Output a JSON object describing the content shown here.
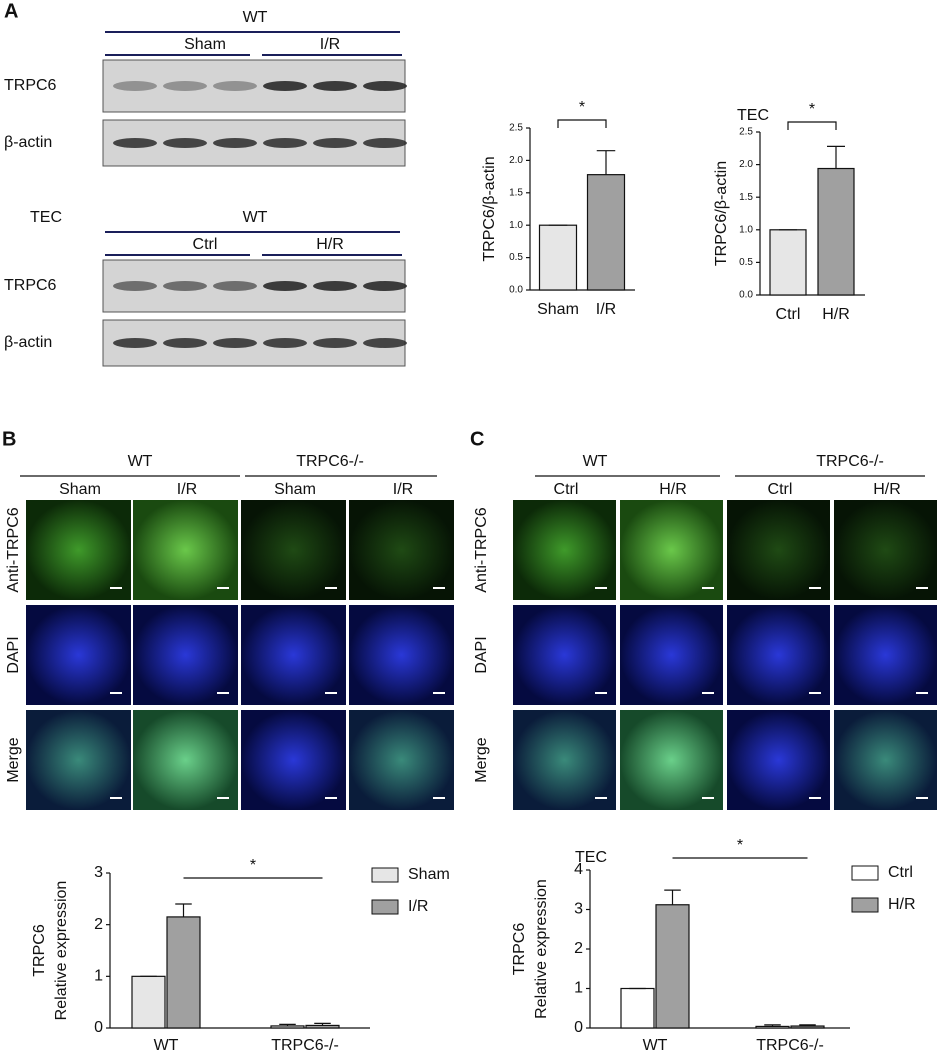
{
  "panel_a": {
    "label": "A",
    "blot1": {
      "group": "WT",
      "conditions": [
        "Sham",
        "I/R"
      ],
      "rows": [
        "TRPC6",
        "β-actin"
      ]
    },
    "blot2": {
      "cell": "TEC",
      "group": "WT",
      "conditions": [
        "Ctrl",
        "H/R"
      ],
      "rows": [
        "TRPC6",
        "β-actin"
      ]
    }
  },
  "panel_b": {
    "label": "B",
    "groups": [
      "WT",
      "TRPC6-/-"
    ],
    "conditions": [
      "Sham",
      "I/R",
      "Sham",
      "I/R"
    ],
    "rows": [
      "Anti-TRPC6",
      "DAPI",
      "Merge"
    ]
  },
  "panel_c": {
    "label": "C",
    "groups": [
      "WT",
      "TRPC6-/-"
    ],
    "conditions": [
      "Ctrl",
      "H/R",
      "Ctrl",
      "H/R"
    ],
    "rows": [
      "Anti-TRPC6",
      "DAPI",
      "Merge"
    ]
  },
  "chart_data": [
    {
      "type": "bar",
      "ylabel": "TRPC6/β-actin",
      "categories": [
        "Sham",
        "I/R"
      ],
      "values": [
        1.0,
        1.78
      ],
      "errors": [
        0,
        0.37
      ],
      "colors": [
        "#e6e6e6",
        "#a0a0a0"
      ],
      "ylim": [
        0,
        2.5
      ],
      "yticks": [
        {
          "value": 0,
          "label": "0.0"
        },
        {
          "value": 0.5,
          "label": "0.5"
        },
        {
          "value": 1,
          "label": "1.0"
        },
        {
          "value": 1.5,
          "label": "1.5"
        },
        {
          "value": 2,
          "label": "2.0"
        },
        {
          "value": 2.5,
          "label": "2.5"
        }
      ],
      "significance": "*"
    },
    {
      "type": "bar",
      "title": "TEC",
      "ylabel": "TRPC6/β-actin",
      "categories": [
        "Ctrl",
        "H/R"
      ],
      "values": [
        1.0,
        1.94
      ],
      "errors": [
        0,
        0.34
      ],
      "colors": [
        "#e6e6e6",
        "#a0a0a0"
      ],
      "ylim": [
        0,
        2.5
      ],
      "yticks": [
        {
          "value": 0,
          "label": "0.0"
        },
        {
          "value": 0.5,
          "label": "0.5"
        },
        {
          "value": 1,
          "label": "1.0"
        },
        {
          "value": 1.5,
          "label": "1.5"
        },
        {
          "value": 2,
          "label": "2.0"
        },
        {
          "value": 2.5,
          "label": "2.5"
        }
      ],
      "significance": "*"
    },
    {
      "type": "grouped_bar",
      "ylabel": [
        "TRPC6",
        "Relative expression"
      ],
      "categories": [
        "WT",
        "TRPC6-/-"
      ],
      "series": [
        {
          "name": "Sham",
          "color": "#e6e6e6",
          "values": [
            1.0,
            0.04
          ],
          "errors": [
            0,
            0.03
          ]
        },
        {
          "name": "I/R",
          "color": "#a0a0a0",
          "values": [
            2.15,
            0.05
          ],
          "errors": [
            0.25,
            0.04
          ]
        }
      ],
      "ylim": [
        0,
        3
      ],
      "yticks": [
        0,
        1,
        2,
        3
      ],
      "legend": "right",
      "significance": "*"
    },
    {
      "type": "grouped_bar",
      "title": "TEC",
      "ylabel": [
        "TRPC6",
        "Relative expression"
      ],
      "categories": [
        "WT",
        "TRPC6-/-"
      ],
      "series": [
        {
          "name": "Ctrl",
          "color": "#ffffff",
          "values": [
            1.0,
            0.04
          ],
          "errors": [
            0,
            0.04
          ]
        },
        {
          "name": "H/R",
          "color": "#a0a0a0",
          "values": [
            3.12,
            0.05
          ],
          "errors": [
            0.37,
            0.03
          ]
        }
      ],
      "ylim": [
        0,
        4
      ],
      "yticks": [
        0,
        1,
        2,
        3,
        4
      ],
      "legend": "right",
      "significance": "*"
    }
  ]
}
